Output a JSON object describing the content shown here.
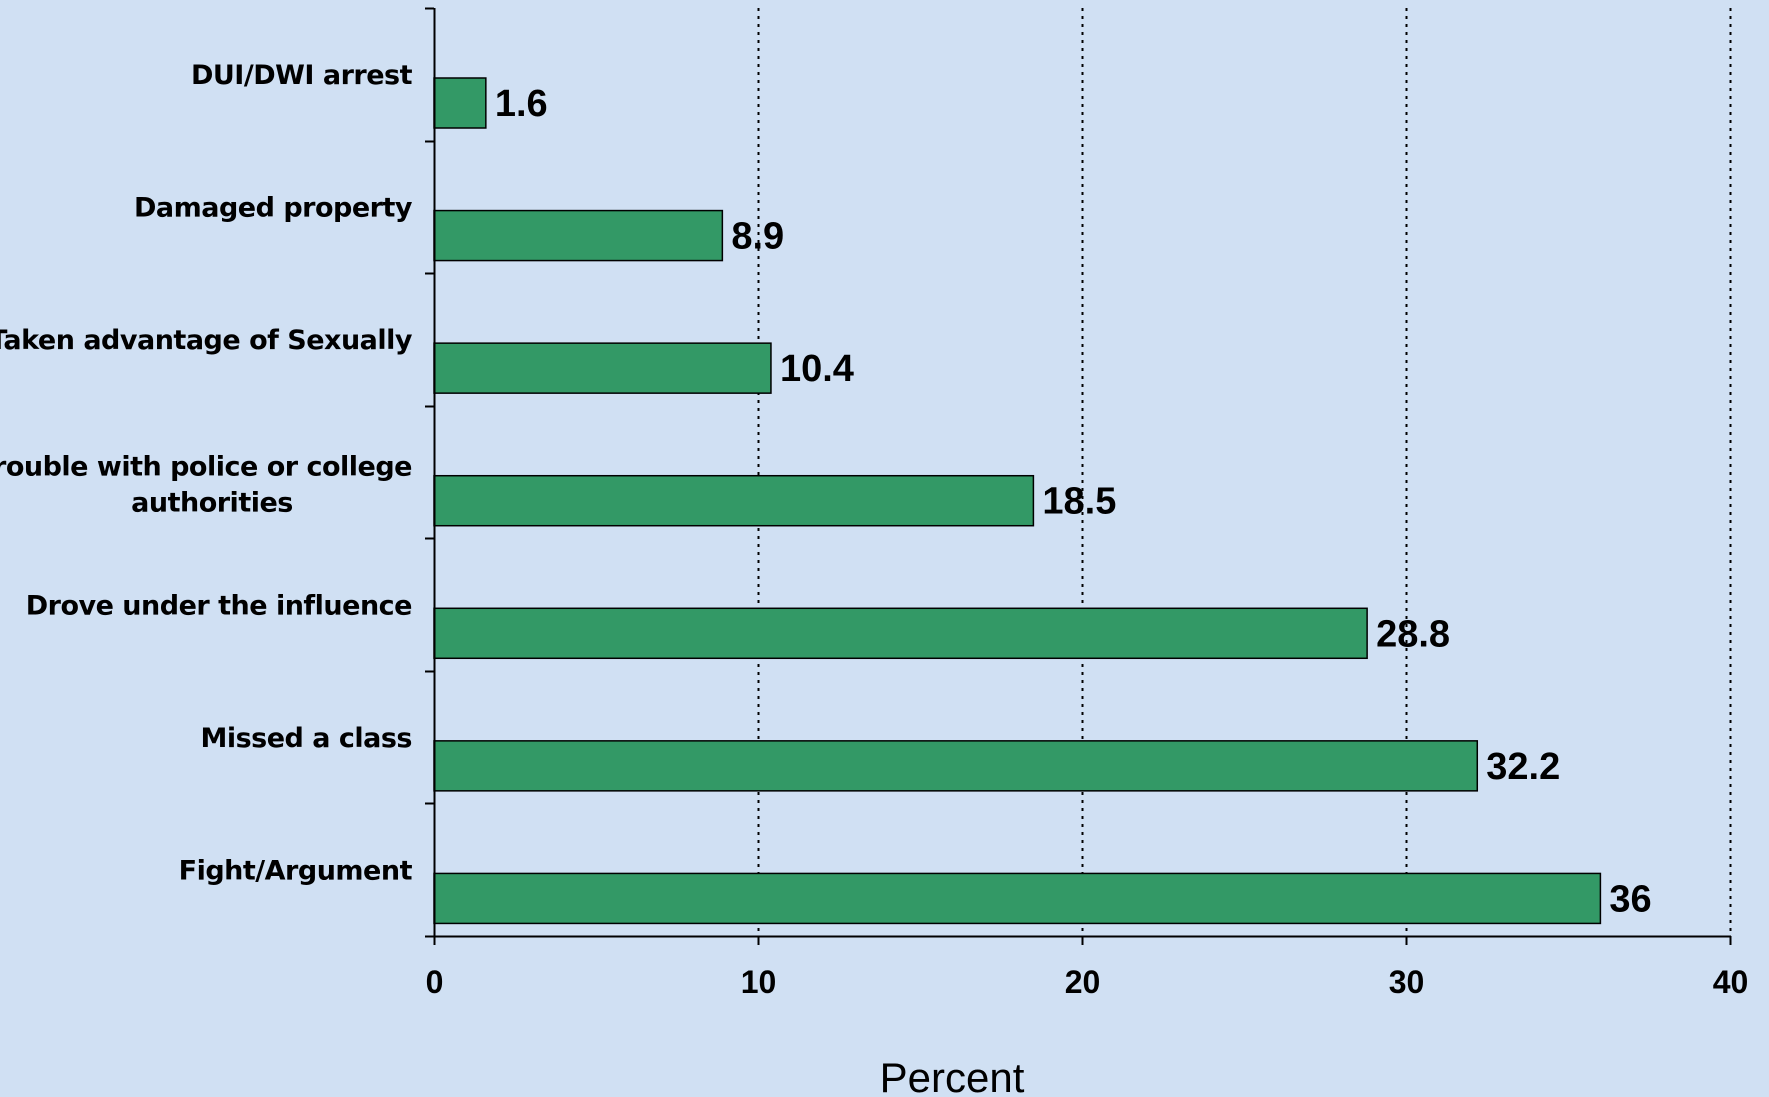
{
  "chart_data": {
    "type": "bar",
    "orientation": "horizontal",
    "categories": [
      "DUI/DWI arrest",
      "Damaged property",
      "Taken advantage of Sexually",
      "Trouble with police or college authorities",
      "Drove under the influence",
      "Missed a class",
      "Fight/Argument"
    ],
    "category_lines": [
      [
        "DUI/DWI arrest"
      ],
      [
        "Damaged property"
      ],
      [
        "Taken advantage of Sexually"
      ],
      [
        "Trouble with police or college",
        "authorities"
      ],
      [
        "Drove under the influence"
      ],
      [
        "Missed a class"
      ],
      [
        "Fight/Argument"
      ]
    ],
    "values": [
      1.6,
      8.9,
      10.4,
      18.5,
      28.8,
      32.2,
      36
    ],
    "value_labels": [
      "1.6",
      "8.9",
      "10.4",
      "18.5",
      "28.8",
      "32.2",
      "36"
    ],
    "xlabel": "Percent",
    "xlim": [
      0,
      40
    ],
    "xticks": [
      0,
      10,
      20,
      30,
      40
    ],
    "gridlines": "vertical dotted",
    "bar_color": "#339966",
    "background": "#d0e0f3"
  }
}
